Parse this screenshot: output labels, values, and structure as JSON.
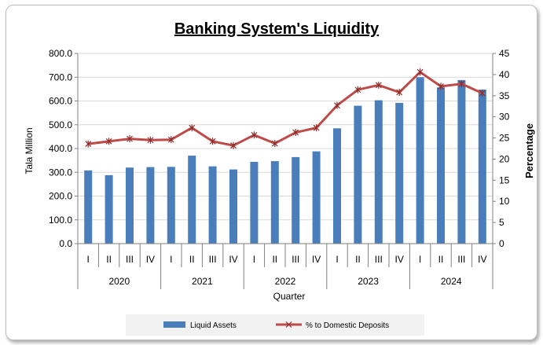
{
  "chart_data": {
    "type": "bar",
    "title": "Banking System's Liquidity",
    "xlabel": "Quarter",
    "ylabel": "Tala Million",
    "y2label": "Percentage",
    "ylim": [
      0,
      800
    ],
    "y2lim": [
      0,
      45
    ],
    "yticks": [
      "0.0",
      "100.0",
      "200.0",
      "300.0",
      "400.0",
      "500.0",
      "600.0",
      "700.0",
      "800.0"
    ],
    "y2ticks": [
      "0",
      "5",
      "10",
      "15",
      "20",
      "25",
      "30",
      "35",
      "40",
      "45"
    ],
    "quarters": [
      "I",
      "II",
      "III",
      "IV",
      "I",
      "II",
      "III",
      "IV",
      "I",
      "II",
      "III",
      "IV",
      "I",
      "II",
      "III",
      "IV",
      "I",
      "II",
      "III",
      "IV"
    ],
    "years": [
      "2020",
      "2021",
      "2022",
      "2023",
      "2024"
    ],
    "series": [
      {
        "name": "Liquid Assets",
        "type": "bar",
        "axis": "left",
        "color": "#4a7ebb",
        "values": [
          308,
          288,
          320,
          322,
          323,
          370,
          325,
          312,
          344,
          347,
          364,
          388,
          485,
          580,
          603,
          592,
          700,
          657,
          688,
          648
        ]
      },
      {
        "name": "% to Domestic Deposits",
        "type": "line",
        "axis": "right",
        "color": "#be4b48",
        "values": [
          23.6,
          24.2,
          24.8,
          24.5,
          24.6,
          27.4,
          24.2,
          23.2,
          25.7,
          23.7,
          26.3,
          27.4,
          32.7,
          36.4,
          37.5,
          35.8,
          40.6,
          37.2,
          37.8,
          35.6
        ]
      }
    ],
    "grid": "horizontal",
    "legend": "bottom"
  }
}
